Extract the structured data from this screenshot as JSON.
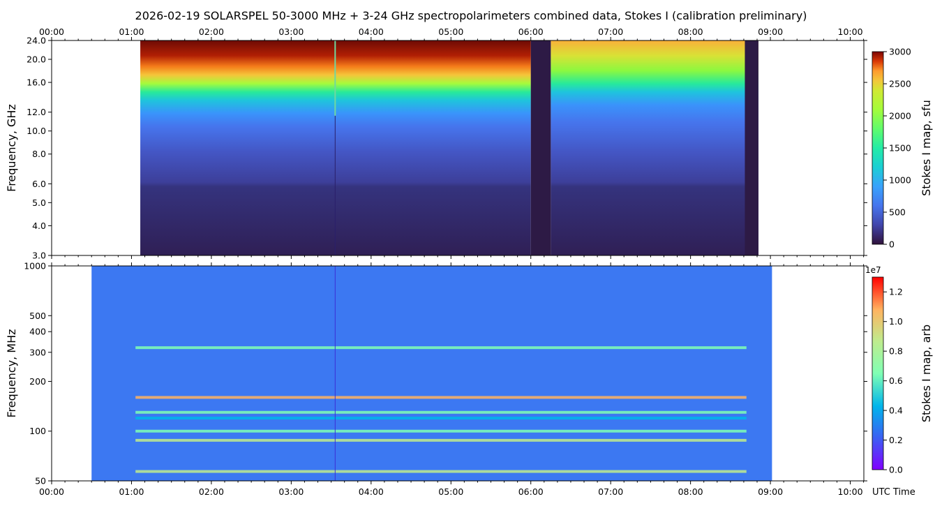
{
  "figure": {
    "title": "2026-02-19  SOLARSPEL  50-3000 MHz  +  3-24 GHz  spectropolarimeters combined data,  Stokes I  (calibration preliminary)"
  },
  "chart_data": [
    {
      "type": "heatmap",
      "title": "",
      "xlabel": "",
      "ylabel": "Frequency, GHz",
      "x_ticks": [
        "00:00",
        "01:00",
        "02:00",
        "03:00",
        "04:00",
        "05:00",
        "06:00",
        "07:00",
        "08:00",
        "09:00",
        "10:00"
      ],
      "xlim_hours": [
        0,
        10.17
      ],
      "x_tick_position": "top",
      "y_scale": "log",
      "ylim": [
        3.0,
        24.0
      ],
      "y_ticks": [
        3.0,
        4.0,
        5.0,
        6.0,
        8.0,
        10.0,
        12.0,
        16.0,
        20.0,
        24.0
      ],
      "y_tick_labels": [
        "3.0",
        "4.0",
        "5.0",
        "6.0",
        "8.0",
        "10.0",
        "12.0",
        "16.0",
        "20.0",
        "24.0"
      ],
      "colormap": "turbo",
      "data_extent_hours": [
        1.11,
        8.85
      ],
      "gaps_hours": [
        [
          6.0,
          6.25
        ],
        [
          8.68,
          8.85
        ]
      ],
      "spike_hour": 3.55,
      "colorbar": {
        "label": "Stokes I map, sfu",
        "min": 0,
        "max": 3000,
        "ticks": [
          0,
          500,
          1000,
          1500,
          2000,
          2500,
          3000
        ]
      },
      "profile_note_freq_ghz": [
        3,
        6,
        8,
        12,
        14,
        16,
        18,
        20,
        22,
        24
      ],
      "profile_values_sfu": [
        250,
        330,
        450,
        620,
        900,
        1400,
        1900,
        2300,
        2600,
        2850
      ]
    },
    {
      "type": "heatmap",
      "title": "",
      "xlabel": "UTC Time",
      "ylabel": "Frequency, MHz",
      "x_ticks": [
        "00:00",
        "01:00",
        "02:00",
        "03:00",
        "04:00",
        "05:00",
        "06:00",
        "07:00",
        "08:00",
        "09:00",
        "10:00"
      ],
      "xlim_hours": [
        0,
        10.17
      ],
      "y_scale": "log",
      "ylim": [
        50,
        1000
      ],
      "y_ticks": [
        50,
        100,
        200,
        300,
        400,
        500,
        1000
      ],
      "y_tick_labels": [
        "50",
        "100",
        "200",
        "300",
        "400",
        "500",
        "1000"
      ],
      "colormap": "rainbow",
      "data_extent_hours": [
        0.5,
        9.02
      ],
      "colorbar": {
        "label": "Stokes I map, arb",
        "min": 0.0,
        "max": 1.3,
        "offset_text": "1e7",
        "ticks": [
          0.0,
          0.2,
          0.4,
          0.6,
          0.8,
          1.0,
          1.2
        ],
        "tick_labels": [
          "0.0",
          "0.2",
          "0.4",
          "0.6",
          "0.8",
          "1.0",
          "1.2"
        ]
      },
      "background_value": 0.24,
      "bright_bands_mhz": [
        57,
        88,
        100,
        120,
        130,
        160,
        320
      ],
      "bright_band_values": [
        0.8,
        0.85,
        0.55,
        0.4,
        0.45,
        0.9,
        0.5
      ]
    }
  ]
}
